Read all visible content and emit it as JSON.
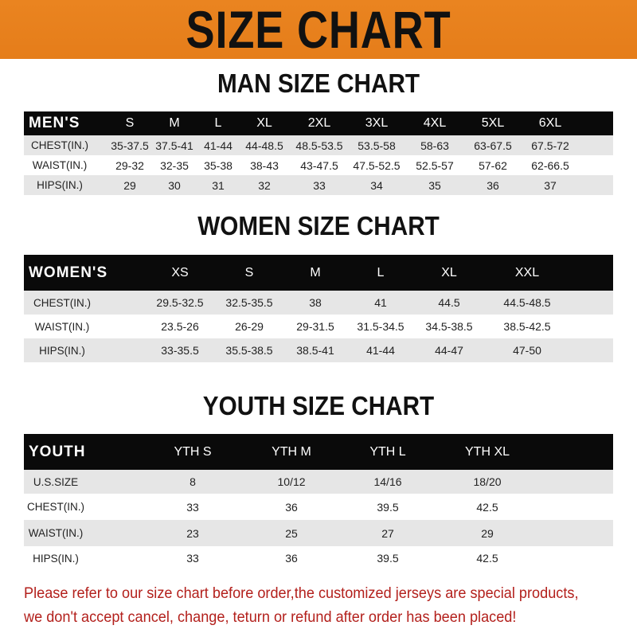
{
  "title": "SIZE CHART",
  "colors": {
    "banner": "#e8801e",
    "header_row": "#0a0a0a",
    "note": "#b3201c"
  },
  "men": {
    "title": "MAN SIZE CHART",
    "header": [
      "MEN'S",
      "S",
      "M",
      "L",
      "XL",
      "2XL",
      "3XL",
      "4XL",
      "5XL",
      "6XL"
    ],
    "rows": [
      [
        "CHEST(IN.)",
        "35-37.5",
        "37.5-41",
        "41-44",
        "44-48.5",
        "48.5-53.5",
        "53.5-58",
        "58-63",
        "63-67.5",
        "67.5-72"
      ],
      [
        "WAIST(IN.)",
        "29-32",
        "32-35",
        "35-38",
        "38-43",
        "43-47.5",
        "47.5-52.5",
        "52.5-57",
        "57-62",
        "62-66.5"
      ],
      [
        "HIPS(IN.)",
        "29",
        "30",
        "31",
        "32",
        "33",
        "34",
        "35",
        "36",
        "37"
      ]
    ]
  },
  "women": {
    "title": "WOMEN SIZE CHART",
    "header": [
      "WOMEN'S",
      "XS",
      "S",
      "M",
      "L",
      "XL",
      "XXL"
    ],
    "rows": [
      [
        "CHEST(IN.)",
        "29.5-32.5",
        "32.5-35.5",
        "38",
        "41",
        "44.5",
        "44.5-48.5"
      ],
      [
        "WAIST(IN.)",
        "23.5-26",
        "26-29",
        "29-31.5",
        "31.5-34.5",
        "34.5-38.5",
        "38.5-42.5"
      ],
      [
        "HIPS(IN.)",
        "33-35.5",
        "35.5-38.5",
        "38.5-41",
        "41-44",
        "44-47",
        "47-50"
      ]
    ]
  },
  "youth": {
    "title": "YOUTH SIZE CHART",
    "header": [
      "YOUTH",
      "YTH S",
      "YTH M",
      "YTH L",
      "YTH XL"
    ],
    "rows": [
      [
        "U.S.SIZE",
        "8",
        "10/12",
        "14/16",
        "18/20"
      ],
      [
        "CHEST(IN.)",
        "33",
        "36",
        "39.5",
        "42.5"
      ],
      [
        "WAIST(IN.)",
        "23",
        "25",
        "27",
        "29"
      ],
      [
        "HIPS(IN.)",
        "33",
        "36",
        "39.5",
        "42.5"
      ]
    ]
  },
  "note": {
    "line1": "Please refer to our size chart before order,the customized jerseys are special products,",
    "line2": "we don't accept cancel, change, teturn or refund after order has been placed!"
  }
}
